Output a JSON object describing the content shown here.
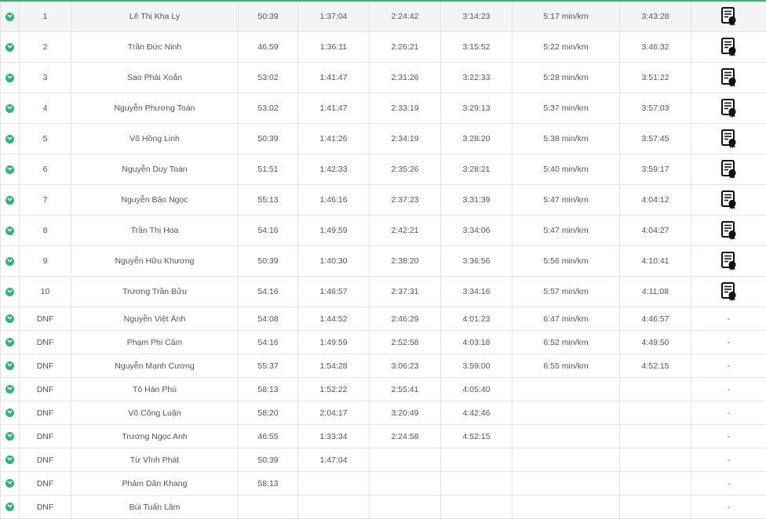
{
  "rows": [
    {
      "rank": "1",
      "name": "Lê Thị Kha Ly",
      "s1": "50:39",
      "s2": "1:37:04",
      "s3": "2:24:42",
      "s4": "3:14:23",
      "pace": "5:17 min/km",
      "finish": "3:43:28",
      "cert": true
    },
    {
      "rank": "2",
      "name": "Trần Đức Ninh",
      "s1": "46:59",
      "s2": "1:36:11",
      "s3": "2:26:21",
      "s4": "3:15:52",
      "pace": "5:22 min/km",
      "finish": "3:46:32",
      "cert": true
    },
    {
      "rank": "3",
      "name": "Sao Phải Xoắn",
      "s1": "53:02",
      "s2": "1:41:47",
      "s3": "2:31:26",
      "s4": "3:22:33",
      "pace": "5:28 min/km",
      "finish": "3:51:22",
      "cert": true
    },
    {
      "rank": "4",
      "name": "Nguyễn Phương Toàn",
      "s1": "53:02",
      "s2": "1:41:47",
      "s3": "2:33:19",
      "s4": "3:29:13",
      "pace": "5:37 min/km",
      "finish": "3:57:03",
      "cert": true
    },
    {
      "rank": "5",
      "name": "Võ Hồng Linh",
      "s1": "50:39",
      "s2": "1:41:26",
      "s3": "2:34:19",
      "s4": "3:28:20",
      "pace": "5:38 min/km",
      "finish": "3:57:45",
      "cert": true
    },
    {
      "rank": "6",
      "name": "Nguyễn Duy Toàn",
      "s1": "51:51",
      "s2": "1:42:33",
      "s3": "2:35:26",
      "s4": "3:28:21",
      "pace": "5:40 min/km",
      "finish": "3:59:17",
      "cert": true
    },
    {
      "rank": "7",
      "name": "Nguyễn Bảo Ngọc",
      "s1": "55:13",
      "s2": "1:46:16",
      "s3": "2:37:23",
      "s4": "3:31:39",
      "pace": "5:47 min/km",
      "finish": "4:04:12",
      "cert": true
    },
    {
      "rank": "8",
      "name": "Trần Thị Hoa",
      "s1": "54:16",
      "s2": "1:49:59",
      "s3": "2:42:21",
      "s4": "3:34:06",
      "pace": "5:47 min/km",
      "finish": "4:04:27",
      "cert": true
    },
    {
      "rank": "9",
      "name": "Nguyễn Hữu Khương",
      "s1": "50:39",
      "s2": "1:40:30",
      "s3": "2:38:20",
      "s4": "3:36:56",
      "pace": "5:56 min/km",
      "finish": "4:10:41",
      "cert": true
    },
    {
      "rank": "10",
      "name": "Trương Trần Bửu",
      "s1": "54:16",
      "s2": "1:46:57",
      "s3": "2:37:31",
      "s4": "3:34:16",
      "pace": "5:57 min/km",
      "finish": "4:11:08",
      "cert": true
    },
    {
      "rank": "DNF",
      "name": "Nguyễn Việt Ánh",
      "s1": "54:08",
      "s2": "1:44:52",
      "s3": "2:46:29",
      "s4": "4:01:23",
      "pace": "6:47 min/km",
      "finish": "4:46:57",
      "cert": false,
      "cert_text": "-"
    },
    {
      "rank": "DNF",
      "name": "Phạm Phi Cầm",
      "s1": "54:16",
      "s2": "1:49:59",
      "s3": "2:52:58",
      "s4": "4:03:18",
      "pace": "6:52 min/km",
      "finish": "4:49:50",
      "cert": false,
      "cert_text": "-"
    },
    {
      "rank": "DNF",
      "name": "Nguyễn Mạnh Cương",
      "s1": "55:37",
      "s2": "1:54:28",
      "s3": "3:06:23",
      "s4": "3:59:00",
      "pace": "6:55 min/km",
      "finish": "4:52:15",
      "cert": false,
      "cert_text": "-"
    },
    {
      "rank": "DNF",
      "name": "Tô Hán Phú",
      "s1": "58:13",
      "s2": "1:52:22",
      "s3": "2:55:41",
      "s4": "4:05:40",
      "pace": "",
      "finish": "",
      "cert": false,
      "cert_text": "-"
    },
    {
      "rank": "DNF",
      "name": "Võ Công Luận",
      "s1": "58:20",
      "s2": "2:04:17",
      "s3": "3:20:49",
      "s4": "4:42:46",
      "pace": "",
      "finish": "",
      "cert": false,
      "cert_text": "-"
    },
    {
      "rank": "DNF",
      "name": "Trương Ngọc Anh",
      "s1": "46:55",
      "s2": "1:33:34",
      "s3": "2:24:58",
      "s4": "4:52:15",
      "pace": "",
      "finish": "",
      "cert": false,
      "cert_text": "-"
    },
    {
      "rank": "DNF",
      "name": "Từ Vĩnh Phát",
      "s1": "50:39",
      "s2": "1:47:04",
      "s3": "",
      "s4": "",
      "pace": "",
      "finish": "",
      "cert": false,
      "cert_text": "-"
    },
    {
      "rank": "DNF",
      "name": "Phảm Dân Khang",
      "s1": "58:13",
      "s2": "",
      "s3": "",
      "s4": "",
      "pace": "",
      "finish": "",
      "cert": false,
      "cert_text": "-"
    },
    {
      "rank": "DNF",
      "name": "Bùi Tuấn Lâm",
      "s1": "",
      "s2": "",
      "s3": "",
      "s4": "",
      "pace": "",
      "finish": "",
      "cert": false,
      "cert_text": "-"
    }
  ],
  "colors": {
    "accent": "#2bb673",
    "border": "#e3e3e3",
    "text": "#555555"
  },
  "icons": {
    "expand": "chevron-down-circle-icon",
    "certificate": "certificate-icon"
  }
}
